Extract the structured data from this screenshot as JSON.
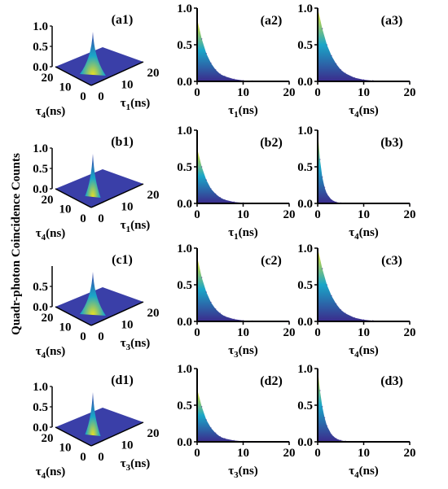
{
  "ylabel": "Quadr-photon Coincidence Counts",
  "colors": {
    "curve_low": "#3b2a8c",
    "curve_mid": "#1aa6c8",
    "curve_high": "#f5e21a",
    "surface": "#3a3fa8"
  },
  "chart_data": [
    {
      "type": "surface3d",
      "label": "(a1)",
      "zlim": [
        0,
        1
      ],
      "z_ticks": [
        "1.0",
        "0.5",
        "0.0"
      ],
      "x_axis": {
        "sym": "τ",
        "sub": "4",
        "unit": "(ns)",
        "ticks": [
          "20",
          "10",
          "0"
        ]
      },
      "y_axis": {
        "sym": "τ",
        "sub": "1",
        "unit": "(ns)",
        "ticks": [
          "0",
          "10",
          "20"
        ]
      },
      "decay_ns": 2.5,
      "peak": 1.0
    },
    {
      "type": "area",
      "label": "(a2)",
      "xlim": [
        0,
        20
      ],
      "ylim": [
        0,
        1
      ],
      "x_ticks": [
        "0",
        "10",
        "20"
      ],
      "y_ticks": [
        "0.0",
        "0.5",
        "1.0"
      ],
      "xlabel": {
        "sym": "τ",
        "sub": "1",
        "unit": "(ns)"
      },
      "x": [
        0,
        1,
        2,
        3,
        4,
        5,
        6,
        8,
        10,
        12,
        14,
        16,
        18,
        20
      ],
      "y": [
        0.85,
        0.58,
        0.38,
        0.25,
        0.16,
        0.1,
        0.07,
        0.03,
        0.012,
        0.005,
        0.002,
        0.001,
        0.0,
        0.0
      ]
    },
    {
      "type": "area",
      "label": "(a3)",
      "xlim": [
        0,
        20
      ],
      "ylim": [
        0,
        1
      ],
      "x_ticks": [
        "0",
        "10",
        "20"
      ],
      "y_ticks": [
        "0.0",
        "0.5",
        "1.0"
      ],
      "xlabel": {
        "sym": "τ",
        "sub": "4",
        "unit": "(ns)"
      },
      "x": [
        0,
        1,
        2,
        3,
        4,
        5,
        6,
        8,
        10,
        12,
        14,
        16,
        18,
        20
      ],
      "y": [
        1.0,
        0.72,
        0.5,
        0.35,
        0.24,
        0.16,
        0.11,
        0.05,
        0.022,
        0.01,
        0.004,
        0.002,
        0.001,
        0.0
      ]
    },
    {
      "type": "surface3d",
      "label": "(b1)",
      "zlim": [
        0,
        1
      ],
      "z_ticks": [
        "1.0",
        "0.5",
        "0.0"
      ],
      "x_axis": {
        "sym": "τ",
        "sub": "4",
        "unit": "(ns)",
        "ticks": [
          "20",
          "10",
          "0"
        ]
      },
      "y_axis": {
        "sym": "τ",
        "sub": "1",
        "unit": "(ns)",
        "ticks": [
          "0",
          "10",
          "20"
        ]
      },
      "decay_ns": 0.9,
      "peak": 1.0
    },
    {
      "type": "area",
      "label": "(b2)",
      "xlim": [
        0,
        20
      ],
      "ylim": [
        0,
        1
      ],
      "x_ticks": [
        "0",
        "10",
        "20"
      ],
      "y_ticks": [
        "0.0",
        "0.5",
        "1.0"
      ],
      "xlabel": {
        "sym": "τ",
        "sub": "1",
        "unit": "(ns)"
      },
      "x": [
        0,
        1,
        2,
        3,
        4,
        5,
        6,
        8,
        10,
        12,
        14,
        16,
        18,
        20
      ],
      "y": [
        0.75,
        0.5,
        0.32,
        0.2,
        0.13,
        0.08,
        0.05,
        0.02,
        0.008,
        0.003,
        0.001,
        0.0,
        0.0,
        0.0
      ]
    },
    {
      "type": "area",
      "label": "(b3)",
      "xlim": [
        0,
        20
      ],
      "ylim": [
        0,
        1
      ],
      "x_ticks": [
        "0",
        "10",
        "20"
      ],
      "y_ticks": [
        "0.0",
        "0.5",
        "1.0"
      ],
      "xlabel": {
        "sym": "τ",
        "sub": "4",
        "unit": "(ns)"
      },
      "x": [
        0,
        0.5,
        1,
        1.5,
        2,
        3,
        4,
        5,
        6,
        8,
        10,
        14,
        20
      ],
      "y": [
        1.0,
        0.6,
        0.36,
        0.22,
        0.13,
        0.05,
        0.018,
        0.007,
        0.003,
        0.0,
        0.0,
        0.0,
        0.0
      ]
    },
    {
      "type": "surface3d",
      "label": "(c1)",
      "zlim": [
        0,
        1
      ],
      "z_ticks": [
        "0.5",
        "0.0"
      ],
      "x_axis": {
        "sym": "τ",
        "sub": "4",
        "unit": "(ns)",
        "ticks": [
          "20",
          "10",
          "0"
        ]
      },
      "y_axis": {
        "sym": "τ",
        "sub": "3",
        "unit": "(ns)",
        "ticks": [
          "0",
          "10",
          "20"
        ]
      },
      "decay_ns": 2.5,
      "peak": 1.0
    },
    {
      "type": "area",
      "label": "(c2)",
      "xlim": [
        0,
        20
      ],
      "ylim": [
        0,
        1
      ],
      "x_ticks": [
        "0",
        "10",
        "20"
      ],
      "y_ticks": [
        "0.0",
        "0.5",
        "1.0"
      ],
      "xlabel": {
        "sym": "τ",
        "sub": "3",
        "unit": "(ns)"
      },
      "x": [
        0,
        1,
        2,
        3,
        4,
        5,
        6,
        8,
        10,
        12,
        14,
        16,
        18,
        20
      ],
      "y": [
        0.88,
        0.6,
        0.4,
        0.26,
        0.17,
        0.11,
        0.07,
        0.03,
        0.012,
        0.005,
        0.002,
        0.001,
        0.0,
        0.0
      ]
    },
    {
      "type": "area",
      "label": "(c3)",
      "xlim": [
        0,
        20
      ],
      "ylim": [
        0,
        1
      ],
      "x_ticks": [
        "0",
        "10",
        "20"
      ],
      "y_ticks": [
        "0.0",
        "0.5",
        "1.0"
      ],
      "xlabel": {
        "sym": "τ",
        "sub": "4",
        "unit": "(ns)"
      },
      "x": [
        0,
        1,
        2,
        3,
        4,
        5,
        6,
        8,
        10,
        12,
        14,
        16,
        18,
        20
      ],
      "y": [
        1.0,
        0.72,
        0.5,
        0.35,
        0.24,
        0.16,
        0.11,
        0.05,
        0.022,
        0.01,
        0.004,
        0.002,
        0.001,
        0.0
      ]
    },
    {
      "type": "surface3d",
      "label": "(d1)",
      "zlim": [
        0,
        1
      ],
      "z_ticks": [
        "1.0",
        "0.5",
        "0.0"
      ],
      "x_axis": {
        "sym": "τ",
        "sub": "4",
        "unit": "(ns)",
        "ticks": [
          "20",
          "10",
          "0"
        ]
      },
      "y_axis": {
        "sym": "τ",
        "sub": "3",
        "unit": "(ns)",
        "ticks": [
          "0",
          "10",
          "20"
        ]
      },
      "decay_ns": 0.9,
      "peak": 1.0
    },
    {
      "type": "area",
      "label": "(d2)",
      "xlim": [
        0,
        20
      ],
      "ylim": [
        0,
        1
      ],
      "x_ticks": [
        "0",
        "10",
        "20"
      ],
      "y_ticks": [
        "0.0",
        "0.5",
        "1.0"
      ],
      "xlabel": {
        "sym": "τ",
        "sub": "3",
        "unit": "(ns)"
      },
      "x": [
        0,
        1,
        2,
        3,
        4,
        5,
        6,
        8,
        10,
        12,
        14,
        16,
        18,
        20
      ],
      "y": [
        0.72,
        0.48,
        0.3,
        0.19,
        0.12,
        0.07,
        0.045,
        0.018,
        0.007,
        0.003,
        0.001,
        0.0,
        0.0,
        0.0
      ]
    },
    {
      "type": "area",
      "label": "(d3)",
      "xlim": [
        0,
        20
      ],
      "ylim": [
        0,
        1
      ],
      "x_ticks": [
        "0",
        "10",
        "20"
      ],
      "y_ticks": [
        "0.0",
        "0.5",
        "1.0"
      ],
      "xlabel": {
        "sym": "τ",
        "sub": "4",
        "unit": "(ns)"
      },
      "x": [
        0,
        0.5,
        1,
        1.5,
        2,
        3,
        4,
        5,
        6,
        8,
        10,
        14,
        20
      ],
      "y": [
        1.0,
        0.7,
        0.48,
        0.33,
        0.22,
        0.1,
        0.045,
        0.02,
        0.009,
        0.002,
        0.0,
        0.0,
        0.0
      ]
    }
  ]
}
